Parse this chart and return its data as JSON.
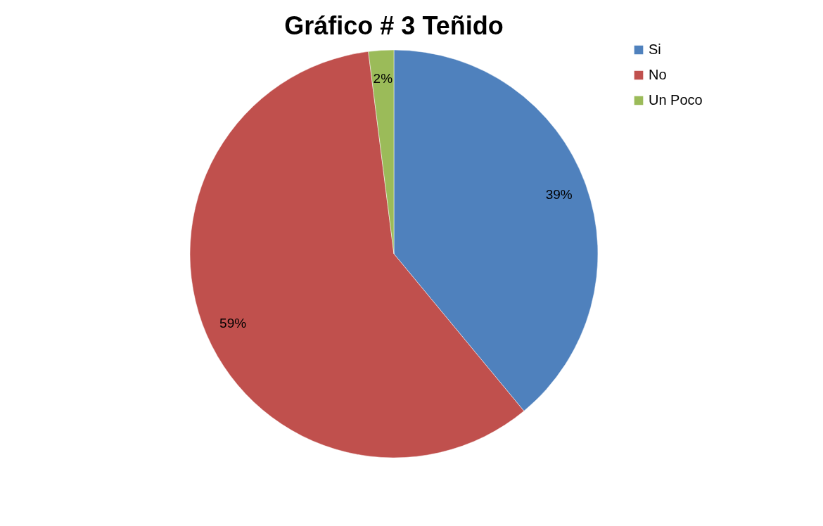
{
  "chart_data": {
    "type": "pie",
    "title": "Gráfico # 3 Teñido",
    "categories": [
      "Si",
      "No",
      "Un Poco"
    ],
    "values": [
      39,
      59,
      2
    ],
    "colors": [
      "#4f81bd",
      "#c0504d",
      "#9bbb59"
    ],
    "value_labels": [
      "39%",
      "59%",
      "2%"
    ],
    "legend": "right"
  }
}
